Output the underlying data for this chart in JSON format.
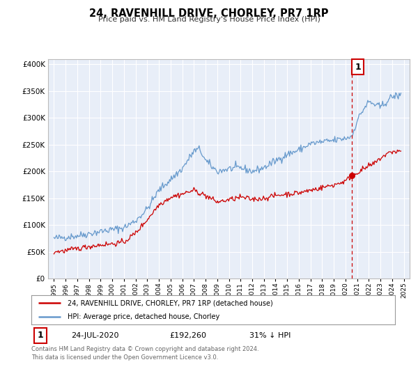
{
  "title": "24, RAVENHILL DRIVE, CHORLEY, PR7 1RP",
  "subtitle": "Price paid vs. HM Land Registry's House Price Index (HPI)",
  "legend_line1": "24, RAVENHILL DRIVE, CHORLEY, PR7 1RP (detached house)",
  "legend_line2": "HPI: Average price, detached house, Chorley",
  "annotation_label": "1",
  "annotation_date": "24-JUL-2020",
  "annotation_price": "£192,260",
  "annotation_pct": "31% ↓ HPI",
  "footer1": "Contains HM Land Registry data © Crown copyright and database right 2024.",
  "footer2": "This data is licensed under the Open Government Licence v3.0.",
  "red_color": "#cc0000",
  "blue_color": "#6699cc",
  "plot_bg_color": "#e8eef8",
  "vline_x": 2020.55,
  "marker_x": 2020.55,
  "marker_y": 192260,
  "ylim": [
    0,
    410000
  ],
  "xlim": [
    1994.5,
    2025.5
  ],
  "yticks": [
    0,
    50000,
    100000,
    150000,
    200000,
    250000,
    300000,
    350000,
    400000
  ],
  "xticks": [
    1995,
    1996,
    1997,
    1998,
    1999,
    2000,
    2001,
    2002,
    2003,
    2004,
    2005,
    2006,
    2007,
    2008,
    2009,
    2010,
    2011,
    2012,
    2013,
    2014,
    2015,
    2016,
    2017,
    2018,
    2019,
    2020,
    2021,
    2022,
    2023,
    2024,
    2025
  ]
}
